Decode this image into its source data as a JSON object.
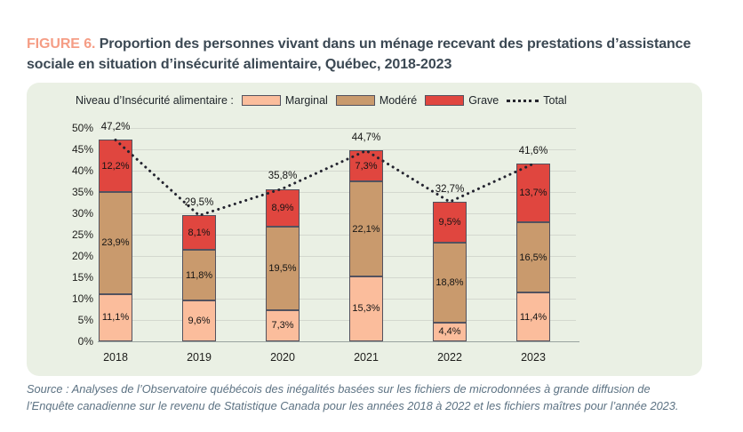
{
  "figure": {
    "label": "FIGURE 6.",
    "title": " Proportion des personnes vivant dans un ménage recevant des prestations d’assistance sociale en situation d’insécurité alimentaire, Québec, 2018-2023"
  },
  "legend": {
    "prefix": "Niveau d’Insécurité alimentaire :",
    "items": [
      {
        "label": "Marginal",
        "color": "#fbbd9c"
      },
      {
        "label": "Modéré",
        "color": "#c99a6d"
      },
      {
        "label": "Grave",
        "color": "#e0463f"
      },
      {
        "label": "Total",
        "style": "dotted-line"
      }
    ]
  },
  "chart_data": {
    "type": "bar",
    "subtype": "stacked-bars-with-dotted-total-line",
    "categories": [
      "2018",
      "2019",
      "2020",
      "2021",
      "2022",
      "2023"
    ],
    "series": [
      {
        "name": "Marginal",
        "color": "#fbbd9c",
        "values": [
          11.1,
          9.6,
          7.3,
          15.3,
          4.4,
          11.4
        ]
      },
      {
        "name": "Modéré",
        "color": "#c99a6d",
        "values": [
          23.9,
          11.8,
          19.5,
          22.1,
          18.8,
          16.5
        ]
      },
      {
        "name": "Grave",
        "color": "#e0463f",
        "values": [
          12.2,
          8.1,
          8.9,
          7.3,
          9.5,
          13.7
        ]
      }
    ],
    "line_series": {
      "name": "Total",
      "style": "dotted",
      "color": "#23232f",
      "values": [
        47.2,
        29.5,
        35.8,
        44.7,
        32.7,
        41.6
      ]
    },
    "ylabel": "",
    "xlabel": "",
    "ylim": [
      0,
      50
    ],
    "ytick_step": 5,
    "ytick_suffix": "%",
    "decimal_separator": ",",
    "grid": true,
    "legend_position": "top"
  },
  "source": {
    "lines": [
      "Source : Analyses de l’Observatoire québécois des inégalités basées sur les fichiers de microdonnées à grande diffusion de",
      "l’Enquête canadienne sur le revenu de Statistique Canada pour les années 2018 à 2022 et les fichiers maîtres pour l’année 2023."
    ]
  }
}
